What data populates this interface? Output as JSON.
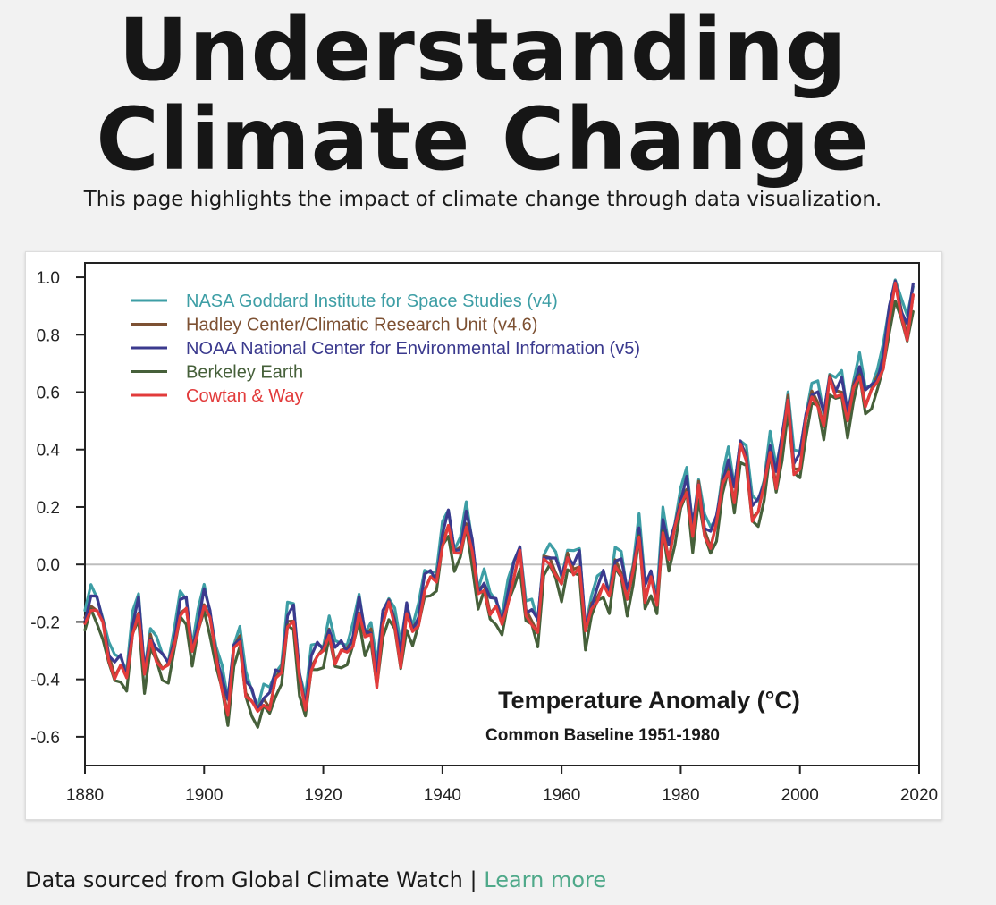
{
  "header": {
    "title_line1": "Understanding",
    "title_line2": "Climate Change",
    "subtitle": "This page highlights the impact of climate change through data visualization."
  },
  "footer": {
    "source_text": "Data sourced from Global Climate Watch",
    "separator": "|",
    "link_label": "Learn more",
    "link_color": "#4fa98a"
  },
  "chart_data": {
    "type": "line",
    "title": "Temperature Anomaly (°C)",
    "subtitle": "Common Baseline 1951-1980",
    "xlabel": "",
    "ylabel": "",
    "xlim": [
      1880,
      2020
    ],
    "ylim": [
      -0.7,
      1.05
    ],
    "x_ticks": [
      1880,
      1900,
      1920,
      1940,
      1960,
      1980,
      2000,
      2020
    ],
    "y_ticks": [
      -0.6,
      -0.4,
      -0.2,
      0.0,
      0.2,
      0.4,
      0.6,
      0.8,
      1.0
    ],
    "y_tick_labels": [
      "-0.6",
      "-0.4",
      "-0.2",
      "0.0",
      "0.2",
      "0.4",
      "0.6",
      "0.8",
      "1.0"
    ],
    "grid": false,
    "zero_line": true,
    "legend_position": "top-left",
    "base_series": {
      "x": [
        1880,
        1881,
        1882,
        1883,
        1884,
        1885,
        1886,
        1887,
        1888,
        1889,
        1890,
        1891,
        1892,
        1893,
        1894,
        1895,
        1896,
        1897,
        1898,
        1899,
        1900,
        1901,
        1902,
        1903,
        1904,
        1905,
        1906,
        1907,
        1908,
        1909,
        1910,
        1911,
        1912,
        1913,
        1914,
        1915,
        1916,
        1917,
        1918,
        1919,
        1920,
        1921,
        1922,
        1923,
        1924,
        1925,
        1926,
        1927,
        1928,
        1929,
        1930,
        1931,
        1932,
        1933,
        1934,
        1935,
        1936,
        1937,
        1938,
        1939,
        1940,
        1941,
        1942,
        1943,
        1944,
        1945,
        1946,
        1947,
        1948,
        1949,
        1950,
        1951,
        1952,
        1953,
        1954,
        1955,
        1956,
        1957,
        1958,
        1959,
        1960,
        1961,
        1962,
        1963,
        1964,
        1965,
        1966,
        1967,
        1968,
        1969,
        1970,
        1971,
        1972,
        1973,
        1974,
        1975,
        1976,
        1977,
        1978,
        1979,
        1980,
        1981,
        1982,
        1983,
        1984,
        1985,
        1986,
        1987,
        1988,
        1989,
        1990,
        1991,
        1992,
        1993,
        1994,
        1995,
        1996,
        1997,
        1998,
        1999,
        2000,
        2001,
        2002,
        2003,
        2004,
        2005,
        2006,
        2007,
        2008,
        2009,
        2010,
        2011,
        2012,
        2013,
        2014,
        2015,
        2016,
        2017,
        2018,
        2019
      ],
      "values": [
        -0.16,
        -0.09,
        -0.11,
        -0.17,
        -0.28,
        -0.33,
        -0.31,
        -0.36,
        -0.18,
        -0.11,
        -0.35,
        -0.22,
        -0.27,
        -0.31,
        -0.32,
        -0.23,
        -0.11,
        -0.11,
        -0.27,
        -0.17,
        -0.08,
        -0.15,
        -0.28,
        -0.37,
        -0.47,
        -0.26,
        -0.22,
        -0.39,
        -0.43,
        -0.48,
        -0.43,
        -0.44,
        -0.36,
        -0.34,
        -0.15,
        -0.14,
        -0.36,
        -0.46,
        -0.3,
        -0.27,
        -0.27,
        -0.19,
        -0.28,
        -0.26,
        -0.27,
        -0.22,
        -0.11,
        -0.22,
        -0.2,
        -0.36,
        -0.16,
        -0.1,
        -0.16,
        -0.29,
        -0.13,
        -0.2,
        -0.15,
        -0.03,
        -0.01,
        -0.02,
        0.13,
        0.19,
        0.07,
        0.09,
        0.2,
        0.09,
        -0.07,
        -0.03,
        -0.11,
        -0.11,
        -0.17,
        -0.07,
        0.01,
        0.08,
        -0.13,
        -0.14,
        -0.19,
        0.05,
        0.06,
        0.03,
        -0.03,
        0.06,
        0.03,
        0.05,
        -0.2,
        -0.11,
        -0.06,
        -0.02,
        -0.08,
        0.05,
        0.03,
        -0.08,
        0.01,
        0.16,
        -0.07,
        -0.01,
        -0.1,
        0.18,
        0.07,
        0.16,
        0.26,
        0.32,
        0.14,
        0.31,
        0.16,
        0.12,
        0.18,
        0.32,
        0.39,
        0.27,
        0.45,
        0.41,
        0.22,
        0.23,
        0.31,
        0.45,
        0.33,
        0.46,
        0.61,
        0.38,
        0.39,
        0.54,
        0.63,
        0.62,
        0.53,
        0.68,
        0.64,
        0.66,
        0.54,
        0.65,
        0.72,
        0.61,
        0.64,
        0.68,
        0.75,
        0.9,
        1.01,
        0.92,
        0.85,
        0.98
      ]
    },
    "series": [
      {
        "name": "NASA Goddard Institute for Space Studies (v4)",
        "color": "#3d9ea5",
        "offset": 0.0
      },
      {
        "name": "Hadley Center/Climatic Research Unit (v4.6)",
        "color": "#7d5133",
        "offset": -0.04
      },
      {
        "name": "NOAA National Center for Environmental Information (v5)",
        "color": "#3b3a8e",
        "offset": -0.02
      },
      {
        "name": "Berkeley Earth",
        "color": "#46603a",
        "offset": -0.08
      },
      {
        "name": "Cowtan & Way",
        "color": "#e23b3b",
        "offset": -0.05
      }
    ]
  }
}
